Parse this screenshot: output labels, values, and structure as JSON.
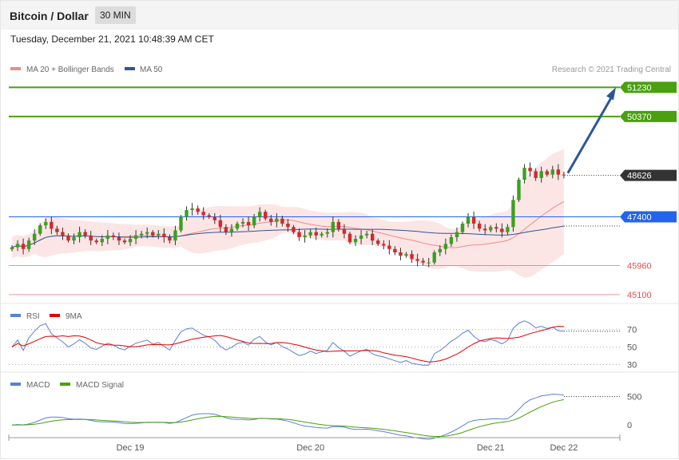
{
  "header": {
    "title": "Bitcoin / Dollar",
    "timeframe": "30 MIN"
  },
  "datetime": "Tuesday, December 21, 2021 10:48:39 AM CET",
  "legend": {
    "bollinger": {
      "label": "MA 20 + Bollinger Bands",
      "color": "#f08a8a"
    },
    "ma50": {
      "label": "MA 50",
      "color": "#2b5797"
    },
    "credit": "Research © 2021 Trading Central"
  },
  "chart_data": {
    "type": "candlestick",
    "y_range": [
      44980,
      51500
    ],
    "levels": [
      {
        "value": 51230,
        "label": "51230",
        "color": "#4aa010",
        "kind": "resistance"
      },
      {
        "value": 50370,
        "label": "50370",
        "color": "#4aa010",
        "kind": "resistance"
      },
      {
        "value": 48626,
        "label": "48626",
        "color": "#333333",
        "kind": "last-price"
      },
      {
        "value": 47400,
        "label": "47400",
        "color": "#2463eb",
        "kind": "pivot"
      },
      {
        "value": 45960,
        "label": "45960",
        "color": "#e05050",
        "kind": "support"
      },
      {
        "value": 45100,
        "label": "45100",
        "color": "#e05050",
        "kind": "support"
      }
    ],
    "arrow": {
      "from": 48626,
      "to": 51230,
      "color": "#2b5797"
    },
    "closes": [
      46500,
      46600,
      46450,
      46700,
      46900,
      47150,
      47250,
      47050,
      46950,
      46850,
      46700,
      46800,
      46950,
      46850,
      46700,
      46650,
      46750,
      46850,
      46800,
      46700,
      46650,
      46750,
      46850,
      46900,
      46950,
      46850,
      46900,
      46800,
      46700,
      47000,
      47400,
      47600,
      47650,
      47550,
      47450,
      47400,
      47300,
      47100,
      46950,
      47050,
      47200,
      47250,
      47150,
      47400,
      47550,
      47350,
      47250,
      47350,
      47200,
      47100,
      46950,
      46800,
      46850,
      46950,
      46850,
      46900,
      46950,
      47250,
      47050,
      46900,
      46650,
      46750,
      46850,
      46900,
      46700,
      46600,
      46550,
      46450,
      46350,
      46250,
      46300,
      46150,
      46100,
      46050,
      46050,
      46350,
      46450,
      46600,
      46800,
      46950,
      47200,
      47400,
      47200,
      47050,
      47000,
      47100,
      47050,
      46950,
      47100,
      47900,
      48500,
      48850,
      48750,
      48550,
      48750,
      48650,
      48800,
      48650,
      48626
    ],
    "x_labels": [
      "Dec 19",
      "Dec 20",
      "Dec 21",
      "Dec 22"
    ],
    "x_label_index": [
      21,
      53,
      85,
      98
    ]
  },
  "rsi": {
    "legend_rsi": {
      "label": "RSI",
      "color": "#5b7fd6"
    },
    "legend_ma": {
      "label": "9MA",
      "color": "#e00000"
    },
    "ticks": [
      "70",
      "50",
      "30"
    ],
    "tick_values": [
      70,
      50,
      30
    ],
    "range": [
      25,
      77
    ]
  },
  "macd": {
    "legend_macd": {
      "label": "MACD",
      "color": "#5b7fd6"
    },
    "legend_signal": {
      "label": "MACD Signal",
      "color": "#4aa010"
    },
    "ticks": [
      "500",
      "0"
    ],
    "tick_values": [
      500,
      0
    ],
    "range": [
      -180,
      620
    ]
  }
}
